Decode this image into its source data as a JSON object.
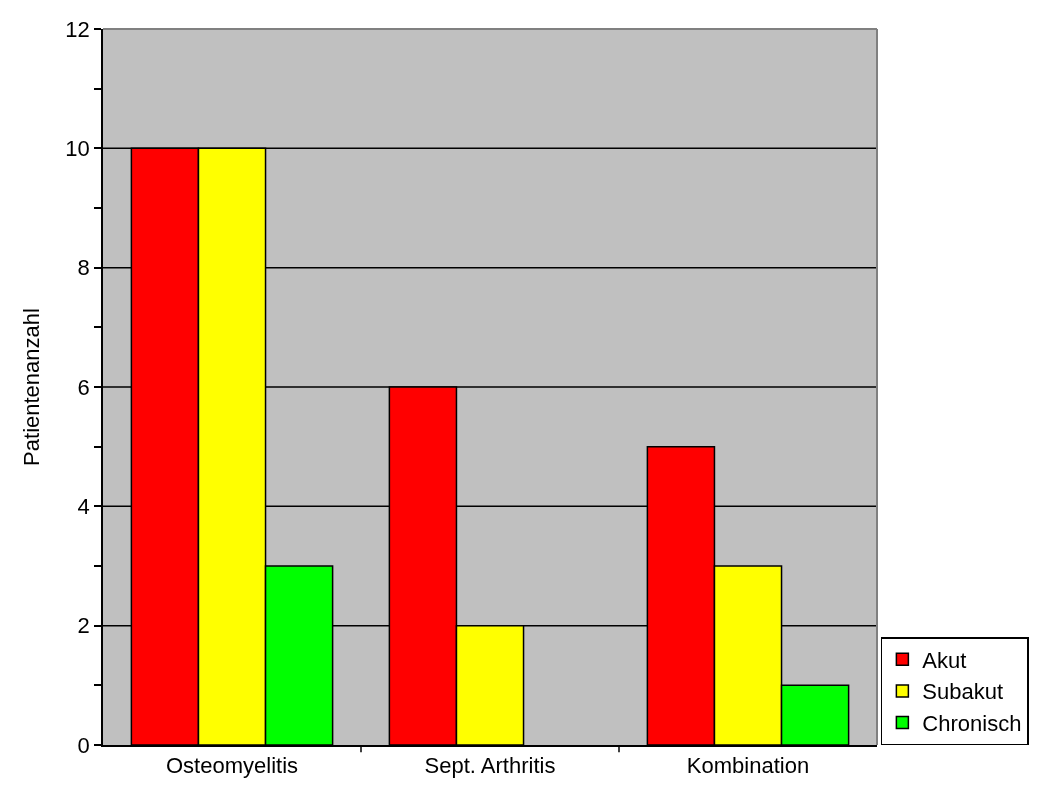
{
  "chart_data": {
    "type": "bar",
    "ylabel": "Patientenanzahl",
    "categories": [
      "Osteomyelitis",
      "Sept. Arthritis",
      "Kombination"
    ],
    "series": [
      {
        "name": "Akut",
        "color": "#ff0000",
        "values": [
          10,
          6,
          5
        ]
      },
      {
        "name": "Subakut",
        "color": "#ffff00",
        "values": [
          10,
          2,
          3
        ]
      },
      {
        "name": "Chronisch",
        "color": "#00ff00",
        "values": [
          3,
          null,
          1
        ]
      }
    ],
    "ylim": [
      0,
      12
    ],
    "yticks": [
      0,
      {
        "value": 1,
        "label": null
      },
      2,
      {
        "value": 3,
        "label": null
      },
      4,
      {
        "value": 5,
        "label": null
      },
      6,
      {
        "value": 7,
        "label": null
      },
      8,
      {
        "value": 9,
        "label": null
      },
      10,
      {
        "value": 11,
        "label": null
      },
      12
    ],
    "grid": "y",
    "legend": "bottom right"
  }
}
